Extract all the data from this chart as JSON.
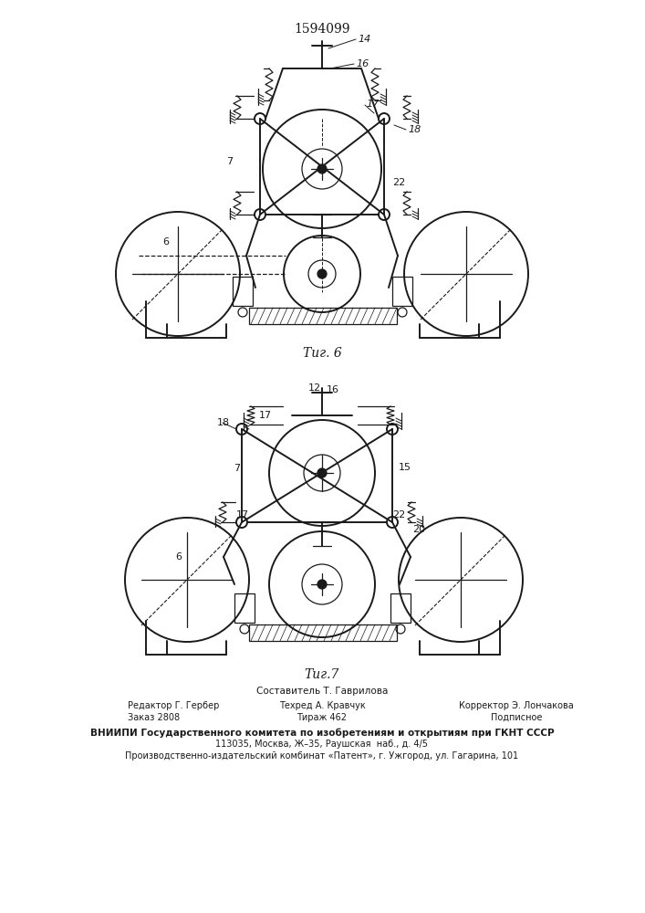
{
  "patent_number": "1594099",
  "fig6_label": "Τиг. 6",
  "fig7_label": "Τиг.7",
  "footer_line1": "Составитель Т. Гаврилова",
  "footer_col1_line1": "Редактор Г. Гербер",
  "footer_col1_line2": "Заказ 2808",
  "footer_col2_line1": "Техред А. Кравчук",
  "footer_col2_line2": "Тираж 462",
  "footer_col3_line1": "Корректор Э. Лончакова",
  "footer_col3_line2": "Подписное",
  "footer_vniip1": "ВНИИПИ Государственного комитета по изобретениям и открытиям при ГКНТ СССР",
  "footer_vniip2": "113035, Москва, Ж–35, Раушская  наб., д. 4/5",
  "footer_vniip3": "Производственно-издательский комбинат «Патент», г. Ужгород, ул. Гагарина, 101",
  "bg_color": "#ffffff",
  "line_color": "#1a1a1a"
}
